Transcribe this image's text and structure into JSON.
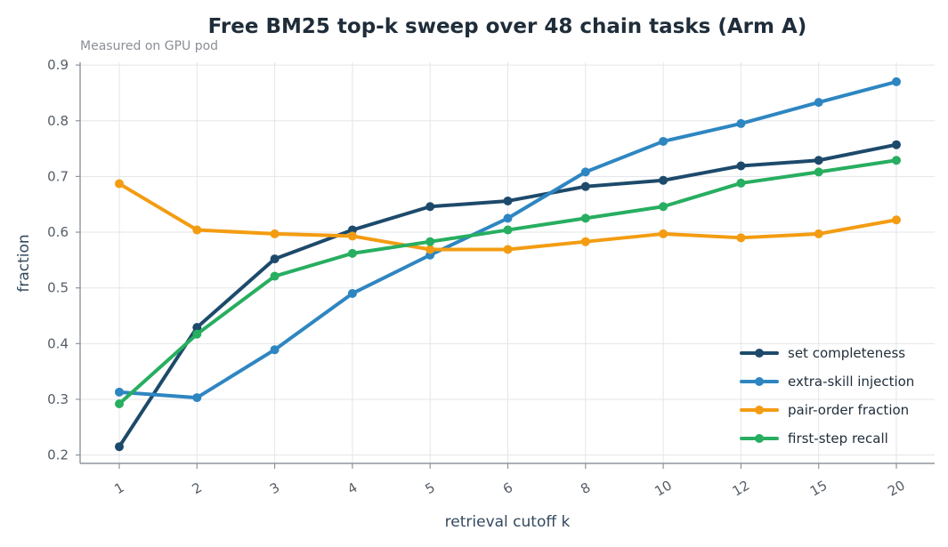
{
  "chart_data": {
    "type": "line",
    "title": "Free BM25 top-k sweep over 48 chain tasks (Arm A)",
    "subtitle": "Measured on GPU pod",
    "xlabel": "retrieval cutoff k",
    "ylabel": "fraction",
    "categories": [
      "1",
      "2",
      "3",
      "4",
      "5",
      "6",
      "8",
      "10",
      "12",
      "15",
      "20"
    ],
    "ylim": [
      0.185,
      0.905
    ],
    "yticks": [
      "0.2",
      "0.3",
      "0.4",
      "0.5",
      "0.6",
      "0.7",
      "0.8",
      "0.9"
    ],
    "grid": true,
    "legend_position": "lower-right",
    "series": [
      {
        "name": "set completeness",
        "color": "#1d4a6b",
        "values": [
          0.215,
          0.429,
          0.552,
          0.604,
          0.646,
          0.656,
          0.682,
          0.693,
          0.719,
          0.729,
          0.757
        ]
      },
      {
        "name": "extra-skill injection",
        "color": "#2e86c1",
        "values": [
          0.313,
          0.303,
          0.389,
          0.49,
          0.559,
          0.625,
          0.708,
          0.763,
          0.795,
          0.833,
          0.87
        ]
      },
      {
        "name": "pair-order fraction",
        "color": "#f39c12",
        "values": [
          0.687,
          0.604,
          0.597,
          0.593,
          0.569,
          0.569,
          0.583,
          0.597,
          0.59,
          0.597,
          0.622
        ]
      },
      {
        "name": "first-step recall",
        "color": "#27ae60",
        "values": [
          0.292,
          0.417,
          0.521,
          0.562,
          0.583,
          0.604,
          0.625,
          0.646,
          0.688,
          0.708,
          0.729
        ]
      }
    ]
  }
}
